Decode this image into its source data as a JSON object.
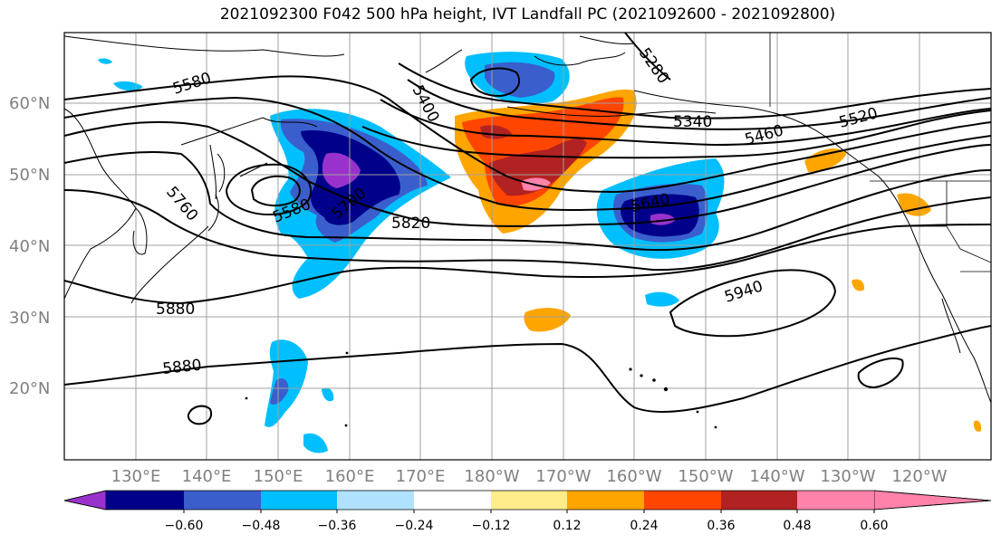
{
  "title": "2021092300 F042 500 hPa height, IVT Landfall PC (2021092600 - 2021092800)",
  "lat_labels": [
    "60°N",
    "50°N",
    "40°N",
    "30°N",
    "20°N"
  ],
  "lon_labels": [
    "130°E",
    "140°E",
    "150°E",
    "160°E",
    "170°E",
    "180°W",
    "170°W",
    "160°W",
    "150°W",
    "140°W",
    "130°W",
    "120°W"
  ],
  "contour_labels": [
    "5580",
    "5280",
    "5400",
    "5340",
    "5460",
    "5520",
    "5760",
    "5580",
    "5700",
    "5820",
    "5640",
    "5880",
    "5940",
    "5880"
  ],
  "colorbar": {
    "ticks": [
      "−0.60",
      "−0.48",
      "−0.36",
      "−0.24",
      "−0.12",
      "0.12",
      "0.24",
      "0.36",
      "0.48",
      "0.60"
    ],
    "colors": [
      "#9932cc",
      "#00008b",
      "#3a5fcd",
      "#00bfff",
      "#b0e2ff",
      "#ffffff",
      "#ffec8b",
      "#ffa500",
      "#ff4500",
      "#b22222",
      "#ff82ab"
    ]
  },
  "colors": {
    "purple": "#9932cc",
    "navy": "#00008b",
    "blue": "#3a5fcd",
    "sky": "#00bfff",
    "light_blue": "#b0e2ff",
    "yellow": "#ffec8b",
    "orange": "#ffa500",
    "red_orange": "#ff4500",
    "dark_red": "#b22222",
    "pink": "#ff82ab"
  }
}
